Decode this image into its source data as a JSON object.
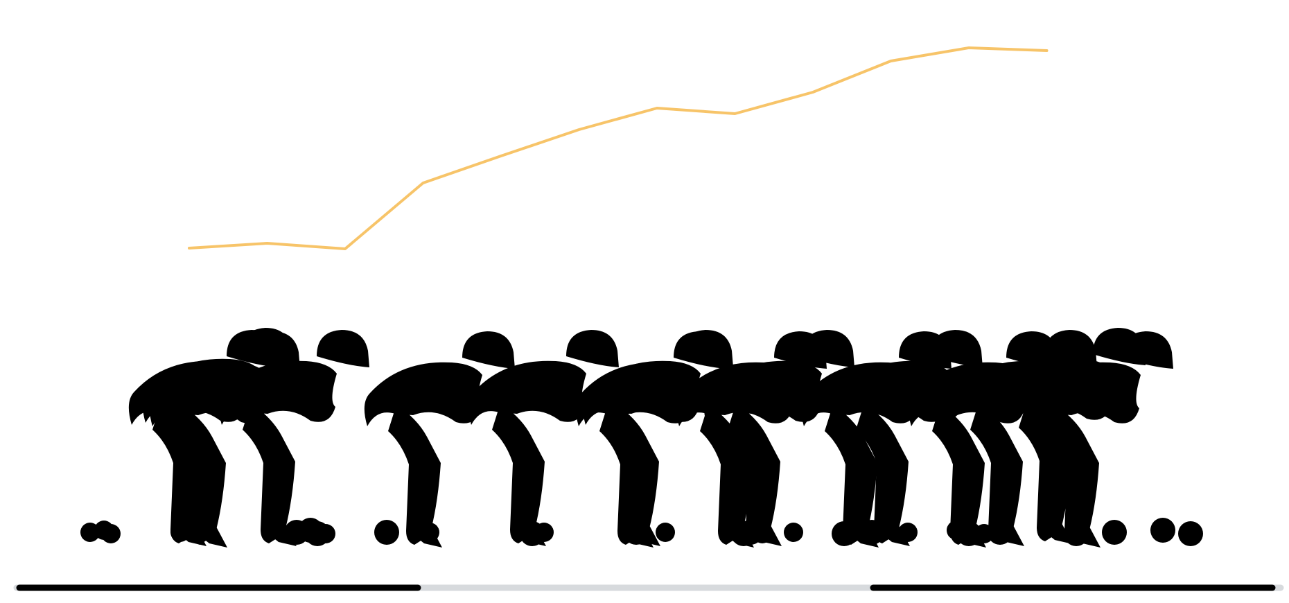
{
  "colors": {
    "profile_line": "#f7c469",
    "rider": "#000000",
    "ghost_rider": "#d7dadd",
    "ground_active": "#000000",
    "ground_ghost": "#d7dadd",
    "background": "#ffffff"
  },
  "icons": {
    "rider": "cyclist-icon",
    "ghost_rider": "cyclist-icon"
  },
  "elevation_profile": {
    "values": [
      358,
      351,
      359,
      264,
      225,
      187,
      156,
      164,
      133,
      88,
      69,
      73
    ]
  },
  "riders": {
    "active_count": 2,
    "ghost_count": 14
  }
}
